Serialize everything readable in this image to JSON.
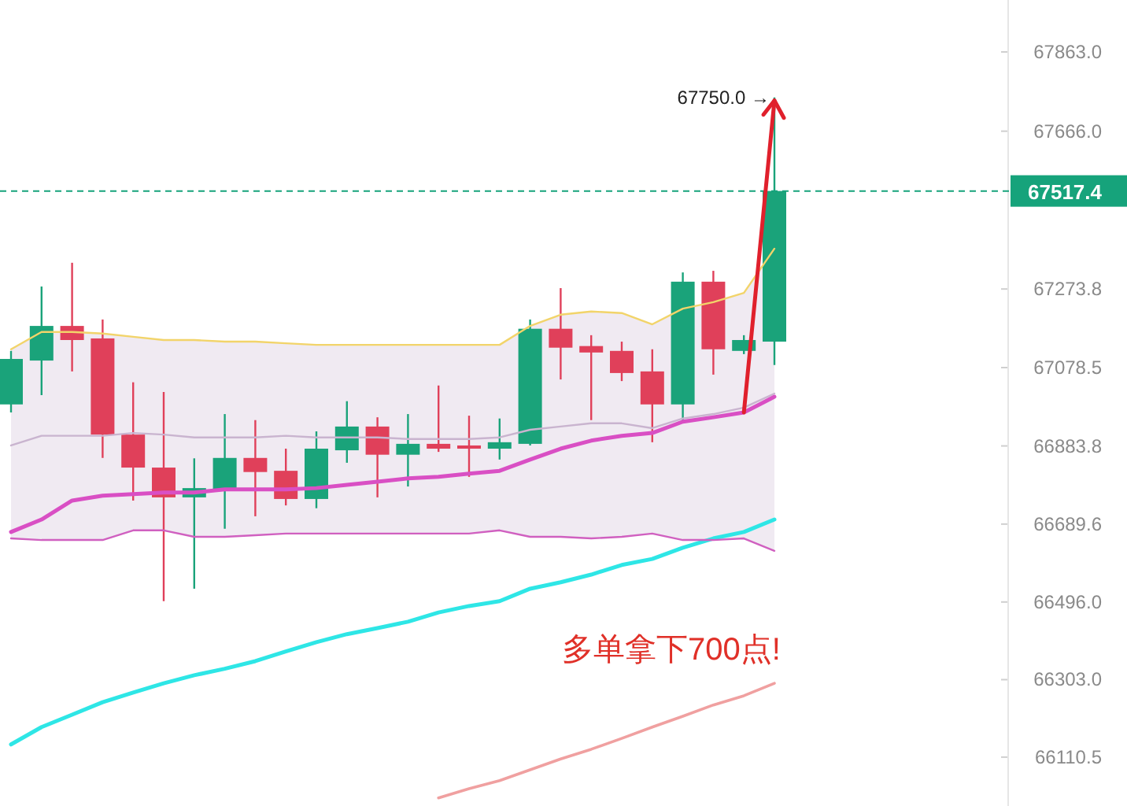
{
  "chart_data": {
    "type": "candlestick",
    "categories": [
      null,
      null,
      null,
      null,
      null,
      null,
      null,
      null,
      null,
      null,
      null,
      null,
      null,
      null,
      null,
      null,
      null,
      null,
      null,
      null,
      null,
      null,
      null,
      null,
      null,
      null
    ],
    "ohlc": [
      [
        66987,
        67120,
        66967,
        67100
      ],
      [
        67096,
        67280,
        67010,
        67182
      ],
      [
        67182,
        67339,
        67069,
        67147
      ],
      [
        67151,
        67198,
        66854,
        66912
      ],
      [
        66912,
        67042,
        66748,
        66830
      ],
      [
        66830,
        67018,
        66498,
        66756
      ],
      [
        66756,
        66853,
        66529,
        66779
      ],
      [
        66776,
        66963,
        66678,
        66854
      ],
      [
        66854,
        66948,
        66709,
        66819
      ],
      [
        66822,
        66877,
        66736,
        66752
      ],
      [
        66752,
        66920,
        66729,
        66877
      ],
      [
        66873,
        66995,
        66842,
        66932
      ],
      [
        66932,
        66955,
        66756,
        66862
      ],
      [
        66862,
        66963,
        66783,
        66889
      ],
      [
        66889,
        67034,
        66869,
        66877
      ],
      [
        66885,
        66959,
        66807,
        66877
      ],
      [
        66877,
        66952,
        66850,
        66893
      ],
      [
        66889,
        67198,
        66885,
        67175
      ],
      [
        67175,
        67276,
        67049,
        67128
      ],
      [
        67132,
        67159,
        66948,
        67116
      ],
      [
        67120,
        67143,
        67045,
        67065
      ],
      [
        67069,
        67124,
        66893,
        66987
      ],
      [
        66987,
        67315,
        66944,
        67292
      ],
      [
        67292,
        67319,
        67061,
        67124
      ],
      [
        67120,
        67159,
        67112,
        67147
      ],
      [
        67143,
        67750.0,
        67085,
        67517.4
      ]
    ],
    "colors": [
      "#1aa37a",
      "#1aa37a",
      "#e0405a",
      "#e0405a",
      "#e0405a",
      "#e0405a",
      "#1aa37a",
      "#1aa37a",
      "#e0405a",
      "#e0405a",
      "#1aa37a",
      "#1aa37a",
      "#e0405a",
      "#1aa37a",
      "#e0405a",
      "#e0405a",
      "#1aa37a",
      "#1aa37a",
      "#e0405a",
      "#e0405a",
      "#e0405a",
      "#e0405a",
      "#1aa37a",
      "#e0405a",
      "#1aa37a",
      "#1aa37a"
    ],
    "series": [
      {
        "type": "line",
        "color": "#c9b4cf",
        "values": [
          66885,
          66909,
          66909,
          66909,
          66916,
          66912,
          66905,
          66905,
          66905,
          66909,
          66905,
          66905,
          66905,
          66901,
          66901,
          66901,
          66905,
          66924,
          66932,
          66940,
          66940,
          66928,
          66952,
          66963,
          66979,
          67014
        ],
        "upper": [
          67124,
          67167,
          67167,
          67163,
          67155,
          67147,
          67147,
          67143,
          67143,
          67139,
          67135,
          67135,
          67135,
          67135,
          67135,
          67135,
          67135,
          67182,
          67210,
          67218,
          67214,
          67186,
          67225,
          67241,
          67264,
          67374
        ],
        "lower": [
          66654,
          66650,
          66650,
          66650,
          66674,
          66674,
          66658,
          66658,
          66662,
          66666,
          66666,
          66666,
          66666,
          66666,
          66666,
          66666,
          66674,
          66658,
          66658,
          66654,
          66658,
          66666,
          66650,
          66650,
          66654,
          66623
        ]
      },
      {
        "type": "line",
        "color": "#d94fc4",
        "values": [
          66670,
          66701,
          66748,
          66760,
          66764,
          66768,
          66768,
          66776,
          66776,
          66776,
          66779,
          66787,
          66795,
          66803,
          66807,
          66815,
          66822,
          66850,
          66877,
          66897,
          66909,
          66916,
          66944,
          66955,
          66967,
          67006
        ]
      },
      {
        "type": "line",
        "color": "#2ee6e6",
        "values": [
          66142,
          66185,
          66216,
          66247,
          66271,
          66294,
          66314,
          66330,
          66349,
          66373,
          66396,
          66416,
          66431,
          66447,
          66470,
          66486,
          66498,
          66529,
          66545,
          66564,
          66588,
          66603,
          66631,
          66654,
          66670,
          66701
        ]
      },
      {
        "type": "line",
        "color": "#f2d46a",
        "values": [
          67124,
          67167,
          67167,
          67163,
          67155,
          67147,
          67147,
          67143,
          67143,
          67139,
          67135,
          67135,
          67135,
          67135,
          67135,
          67135,
          67135,
          67182,
          67210,
          67218,
          67214,
          67186,
          67225,
          67241,
          67264,
          67374
        ]
      },
      {
        "type": "line",
        "color": "#d060c0",
        "values": [
          66654,
          66650,
          66650,
          66650,
          66674,
          66674,
          66658,
          66658,
          66662,
          66666,
          66666,
          66666,
          66666,
          66666,
          66666,
          66666,
          66674,
          66658,
          66658,
          66654,
          66658,
          66666,
          66650,
          66650,
          66654,
          66623
        ]
      },
      {
        "type": "line",
        "color": "#f0a0a0",
        "values": [
          null,
          null,
          null,
          null,
          null,
          null,
          null,
          null,
          null,
          null,
          null,
          null,
          null,
          null,
          66009,
          66032,
          66052,
          66079,
          66106,
          66130,
          66157,
          66185,
          66212,
          66240,
          66263,
          66294
        ]
      }
    ],
    "ylim": [
      65989,
      67992
    ],
    "yticks": [
      {
        "value": 67863.0,
        "label": "67863.0"
      },
      {
        "value": 67666.0,
        "label": "67666.0"
      },
      {
        "value": 67273.8,
        "label": "67273.8"
      },
      {
        "value": 67078.5,
        "label": "67078.5"
      },
      {
        "value": 66883.8,
        "label": "66883.8"
      },
      {
        "value": 66689.6,
        "label": "66689.6"
      },
      {
        "value": 66496.0,
        "label": "66496.0"
      },
      {
        "value": 66303.0,
        "label": "66303.0"
      },
      {
        "value": 66110.5,
        "label": "66110.5"
      }
    ],
    "ref_lines": [
      {
        "axis": "y",
        "value": 67517.4,
        "label": "67517.4",
        "color": "#16a37b",
        "line_style": "dashed"
      }
    ],
    "annotations": [
      "67750.0 →",
      "多单拿下700点!"
    ],
    "grid": false
  }
}
